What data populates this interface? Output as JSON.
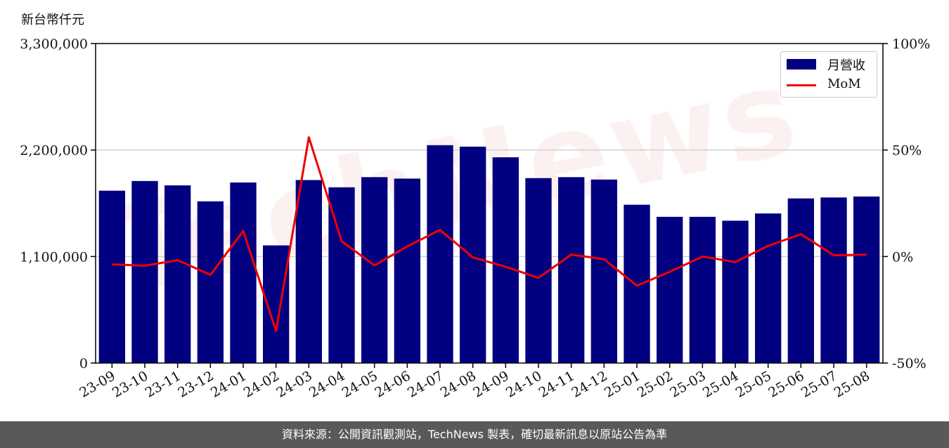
{
  "unit_label": "新台幣仟元",
  "watermark": "TechNews",
  "footer_text": "資料來源：公開資訊觀測站，TechNews 製表，確切最新訊息以原站公告為準",
  "colors": {
    "bar": "#000080",
    "line": "#ee0000",
    "footer_bg": "#595959"
  },
  "chart_data": {
    "type": "bar",
    "categories": [
      "23-09",
      "23-10",
      "23-11",
      "23-12",
      "24-01",
      "24-02",
      "24-03",
      "24-04",
      "24-05",
      "24-06",
      "24-07",
      "24-08",
      "24-09",
      "24-10",
      "24-11",
      "24-12",
      "25-01",
      "25-02",
      "25-03",
      "25-04",
      "25-05",
      "25-06",
      "25-07",
      "25-08"
    ],
    "series": [
      {
        "name": "月營收",
        "type": "bar",
        "axis": "left",
        "values": [
          1780000,
          1880000,
          1835000,
          1670000,
          1865000,
          1215000,
          1890000,
          1815000,
          1920000,
          1905000,
          2250000,
          2235000,
          2125000,
          1910000,
          1920000,
          1895000,
          1635000,
          1510000,
          1510000,
          1470000,
          1545000,
          1700000,
          1710000,
          1720000
        ]
      },
      {
        "name": "MoM",
        "type": "line",
        "axis": "right",
        "values": [
          -3.7,
          -4.3,
          -1.7,
          -8.6,
          12.0,
          -35.0,
          56.0,
          7.2,
          -4.2,
          4.8,
          12.5,
          -0.4,
          -4.8,
          -10.0,
          0.9,
          -1.2,
          -13.7,
          -7.2,
          0.0,
          -2.6,
          5.0,
          10.5,
          0.6,
          0.9
        ]
      }
    ],
    "y_left": {
      "ylim": [
        0,
        3300000
      ],
      "ticks": [
        "0",
        "1,100,000",
        "2,200,000",
        "3,300,000"
      ]
    },
    "y_right": {
      "ylim": [
        -50,
        100
      ],
      "ticks": [
        "-50%",
        "0%",
        "50%",
        "100%"
      ]
    },
    "grid": "horizontal",
    "legend_position": "top-right"
  }
}
